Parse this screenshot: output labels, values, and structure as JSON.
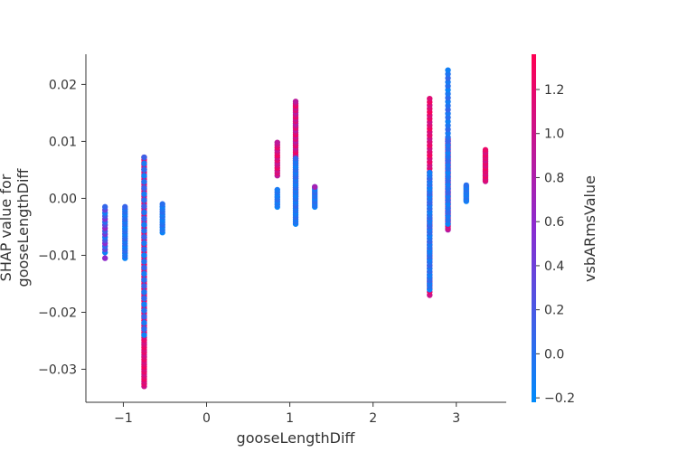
{
  "chart_data": {
    "type": "scatter",
    "title": "",
    "xlabel": "gooseLengthDiff",
    "ylabel_lines": [
      "SHAP value for",
      "gooseLengthDiff"
    ],
    "xlim": [
      -1.45,
      3.6
    ],
    "ylim": [
      -0.0358,
      0.0253
    ],
    "xticks": [
      -1,
      0,
      1,
      2,
      3
    ],
    "xtick_labels": [
      "−1",
      "0",
      "1",
      "2",
      "3"
    ],
    "yticks": [
      -0.03,
      -0.02,
      -0.01,
      0.0,
      0.01,
      0.02
    ],
    "ytick_labels": [
      "−0.03",
      "−0.02",
      "−0.01",
      "0.00",
      "0.01",
      "0.02"
    ],
    "colorbar": {
      "label": "vsbARmsValue",
      "range": [
        -0.22,
        1.36
      ],
      "ticks": [
        -0.2,
        0.0,
        0.2,
        0.4,
        0.6,
        0.8,
        1.0,
        1.2
      ],
      "tick_labels": [
        "−0.2",
        "0.0",
        "0.2",
        "0.4",
        "0.6",
        "0.8",
        "1.0",
        "1.2"
      ],
      "low_color": "#008bfb",
      "mid_color": "#8a2cd0",
      "high_color": "#ff0052"
    },
    "series": [
      {
        "x": -1.22,
        "y_min": -0.0095,
        "y_max": -0.0015,
        "c_min": -0.15,
        "c_max": 0.7,
        "n": 16
      },
      {
        "x": -1.22,
        "y_min": -0.0105,
        "y_max": -0.0105,
        "c_min": 0.6,
        "c_max": 0.6,
        "n": 1
      },
      {
        "x": -0.98,
        "y_min": -0.0105,
        "y_max": -0.0015,
        "c_min": -0.15,
        "c_max": 0.1,
        "n": 22
      },
      {
        "x": -0.75,
        "y_min": -0.033,
        "y_max": 0.0072,
        "c_min": 1.0,
        "c_max": 1.3,
        "n": 95
      },
      {
        "x": -0.75,
        "y_min": -0.024,
        "y_max": 0.0072,
        "c_min": -0.15,
        "c_max": 0.15,
        "n": 30
      },
      {
        "x": -0.53,
        "y_min": -0.006,
        "y_max": -0.001,
        "c_min": -0.15,
        "c_max": 0.05,
        "n": 12
      },
      {
        "x": 0.85,
        "y_min": 0.004,
        "y_max": 0.0098,
        "c_min": 0.9,
        "c_max": 1.3,
        "n": 14
      },
      {
        "x": 0.85,
        "y_min": -0.0015,
        "y_max": 0.0015,
        "c_min": -0.15,
        "c_max": 0.05,
        "n": 8
      },
      {
        "x": 1.07,
        "y_min": 0.0,
        "y_max": 0.017,
        "c_min": 0.8,
        "c_max": 1.3,
        "n": 45
      },
      {
        "x": 1.07,
        "y_min": -0.0045,
        "y_max": 0.007,
        "c_min": -0.15,
        "c_max": 0.1,
        "n": 30
      },
      {
        "x": 1.3,
        "y_min": -0.0015,
        "y_max": 0.002,
        "c_min": -0.15,
        "c_max": 0.1,
        "n": 12
      },
      {
        "x": 1.3,
        "y_min": 0.0018,
        "y_max": 0.0022,
        "c_min": 0.75,
        "c_max": 0.75,
        "n": 1
      },
      {
        "x": 2.68,
        "y_min": -0.017,
        "y_max": 0.0175,
        "c_min": 1.0,
        "c_max": 1.3,
        "n": 60
      },
      {
        "x": 2.68,
        "y_min": -0.016,
        "y_max": 0.0045,
        "c_min": -0.15,
        "c_max": 0.1,
        "n": 40
      },
      {
        "x": 2.9,
        "y_min": -0.0055,
        "y_max": 0.0105,
        "c_min": 0.8,
        "c_max": 1.3,
        "n": 60
      },
      {
        "x": 2.9,
        "y_min": -0.0045,
        "y_max": 0.0225,
        "c_min": -0.15,
        "c_max": 0.1,
        "n": 40
      },
      {
        "x": 3.12,
        "y_min": -0.0005,
        "y_max": 0.0023,
        "c_min": -0.15,
        "c_max": 0.05,
        "n": 12
      },
      {
        "x": 3.35,
        "y_min": 0.003,
        "y_max": 0.0085,
        "c_min": 1.0,
        "c_max": 1.3,
        "n": 20
      }
    ]
  }
}
